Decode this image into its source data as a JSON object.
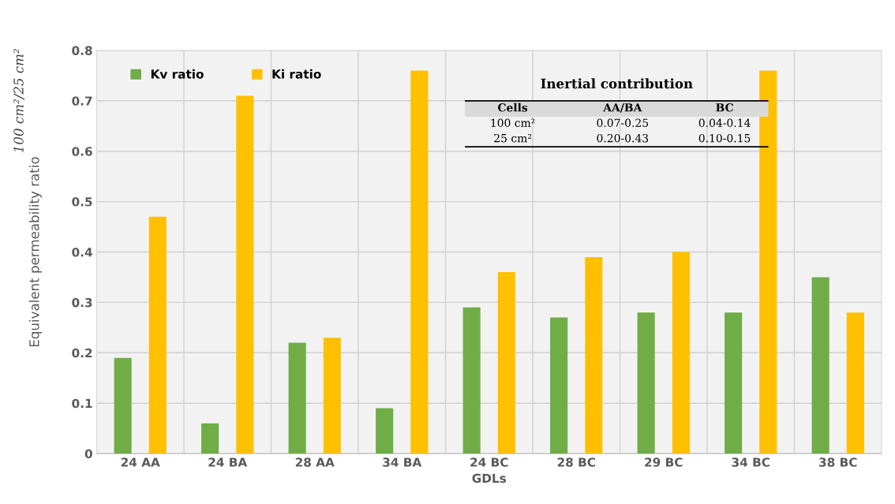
{
  "chart_data": {
    "type": "bar",
    "xlabel": "GDLs",
    "ylabel": "Equivalent permeability ratio",
    "categories": [
      "24 AA",
      "24 BA",
      "28 AA",
      "34 BA",
      "24 BC",
      "28 BC",
      "29 BC",
      "34 BC",
      "38 BC"
    ],
    "series": [
      {
        "name": "Kv ratio",
        "color": "#70ad47",
        "values": [
          0.19,
          0.06,
          0.22,
          0.09,
          0.29,
          0.27,
          0.28,
          0.28,
          0.35
        ]
      },
      {
        "name": "Ki ratio",
        "color": "#ffc000",
        "values": [
          0.47,
          0.71,
          0.23,
          0.76,
          0.36,
          0.39,
          0.4,
          0.76,
          0.28
        ]
      }
    ],
    "ylim": [
      0,
      0.8
    ],
    "yticks": [
      0,
      0.1,
      0.2,
      0.3,
      0.4,
      0.5,
      0.6,
      0.7,
      0.8
    ],
    "grid": true,
    "legend": "top left",
    "annotations": [
      "100 cm²/25 cm²",
      "Inertial contribution",
      "Cells",
      "AA/BA",
      "BC",
      "100 cm²",
      "0.07-0.25",
      "0.04-0.14",
      "25 cm²",
      "0.20-0.43",
      "0.10-0.15"
    ]
  }
}
